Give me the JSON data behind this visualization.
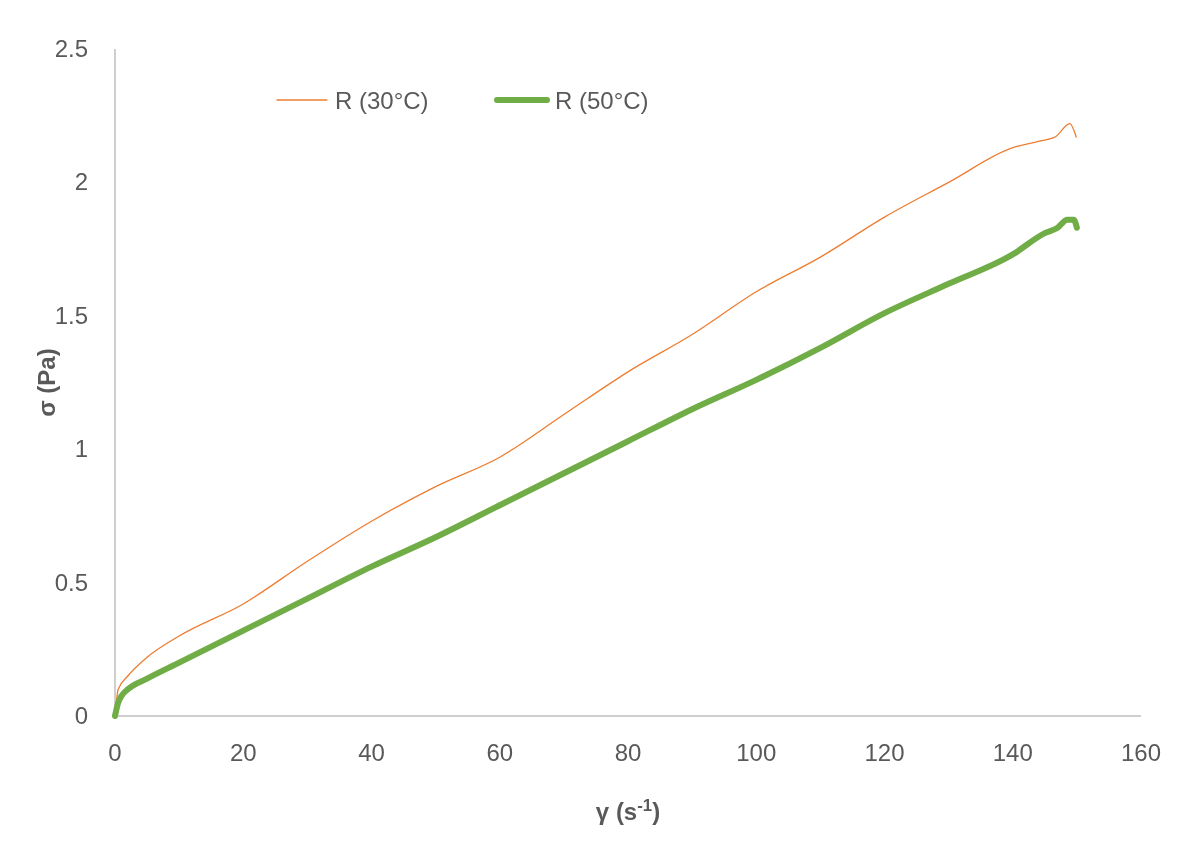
{
  "chart_data": {
    "type": "line",
    "xlabel": "γ (s$^{-1}$)",
    "ylabel": "σ (Pa)",
    "xlim": [
      0,
      160
    ],
    "ylim": [
      0,
      2.5
    ],
    "xticks": [
      0,
      20,
      40,
      60,
      80,
      100,
      120,
      140,
      160
    ],
    "yticks": [
      0,
      0.5,
      1,
      1.5,
      2,
      2.5
    ],
    "grid": false,
    "legend": "top",
    "marker": "none",
    "line_style": "solid",
    "series": [
      {
        "name": "R (30°C)",
        "color": "#ed7d31",
        "x": [
          0,
          0.5,
          2,
          5,
          10,
          20,
          30,
          40,
          50,
          60,
          70,
          80,
          90,
          100,
          110,
          120,
          130,
          140,
          144.2,
          146.6,
          148.9,
          149.9
        ],
        "values": [
          0,
          0.1,
          0.15,
          0.22,
          0.3,
          0.42,
          0.58,
          0.73,
          0.86,
          0.97,
          1.13,
          1.29,
          1.43,
          1.59,
          1.72,
          1.87,
          2.0,
          2.13,
          2.155,
          2.17,
          2.22,
          2.17
        ]
      },
      {
        "name": "R (50°C)",
        "color": "#70ad47",
        "x": [
          0,
          0.5,
          1,
          2,
          5,
          10,
          20,
          30,
          40,
          50,
          60,
          70,
          80,
          90,
          100,
          110,
          120,
          130,
          140,
          145,
          147,
          148.5,
          149.5,
          150
        ],
        "values": [
          0,
          0.05,
          0.075,
          0.1,
          0.14,
          0.2,
          0.32,
          0.44,
          0.56,
          0.67,
          0.79,
          0.91,
          1.03,
          1.15,
          1.26,
          1.38,
          1.51,
          1.62,
          1.73,
          1.81,
          1.83,
          1.86,
          1.86,
          1.83
        ]
      }
    ]
  }
}
